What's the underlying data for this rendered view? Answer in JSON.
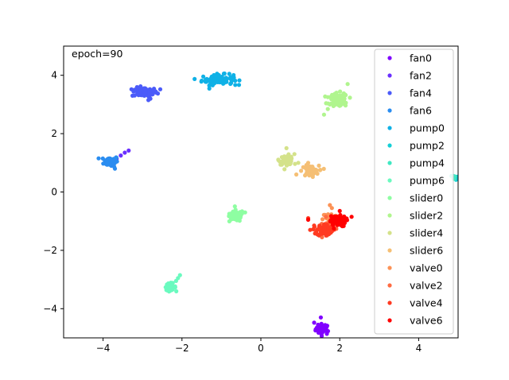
{
  "chart_data": {
    "type": "scatter",
    "annotation": "epoch=90",
    "xlim": [
      -5,
      5
    ],
    "ylim": [
      -5,
      5
    ],
    "xticks": [
      -4,
      -2,
      0,
      2,
      4
    ],
    "yticks": [
      -4,
      -2,
      0,
      2,
      4
    ],
    "grid": false,
    "legend_position": "upper right",
    "series": [
      {
        "name": "fan0",
        "color": "#8000ff",
        "center": [
          1.57,
          -4.7
        ],
        "spread": [
          0.09,
          0.09
        ],
        "n": 40,
        "outliers": [
          [
            1.52,
            -4.3
          ],
          [
            1.35,
            -4.48
          ],
          [
            1.45,
            -4.55
          ]
        ]
      },
      {
        "name": "fan2",
        "color": "#6a2fff",
        "center": [
          -3.72,
          1.05
        ],
        "spread": [
          0.04,
          0.06
        ],
        "n": 8,
        "outliers": [
          [
            -3.45,
            1.35
          ],
          [
            -3.35,
            1.42
          ],
          [
            -3.55,
            1.25
          ]
        ]
      },
      {
        "name": "fan4",
        "color": "#4b5bf9",
        "center": [
          -2.95,
          3.42
        ],
        "spread": [
          0.16,
          0.08
        ],
        "n": 70,
        "outliers": [
          [
            -2.55,
            3.52
          ],
          [
            -2.8,
            3.2
          ],
          [
            -2.85,
            3.15
          ],
          [
            -3.2,
            3.48
          ]
        ]
      },
      {
        "name": "fan6",
        "color": "#2a8df0",
        "center": [
          -3.8,
          1.05
        ],
        "spread": [
          0.09,
          0.09
        ],
        "n": 65,
        "outliers": [
          [
            -3.9,
            1.0
          ],
          [
            -3.7,
            0.8
          ],
          [
            -3.85,
            1.15
          ]
        ]
      },
      {
        "name": "pump0",
        "color": "#0fb1e6",
        "center": [
          -1.1,
          3.85
        ],
        "spread": [
          0.2,
          0.09
        ],
        "n": 80,
        "outliers": [
          [
            -1.4,
            3.85
          ],
          [
            -0.65,
            3.67
          ],
          [
            -1.3,
            3.8
          ],
          [
            -0.8,
            4.05
          ]
        ]
      },
      {
        "name": "pump2",
        "color": "#14cfd6",
        "center": [
          4.95,
          0.48
        ],
        "spread": [
          0.05,
          0.05
        ],
        "n": 14,
        "outliers": []
      },
      {
        "name": "pump4",
        "color": "#40e8c2",
        "center": [
          4.9,
          0.5
        ],
        "spread": [
          0.04,
          0.04
        ],
        "n": 6,
        "outliers": []
      },
      {
        "name": "pump6",
        "color": "#6afabf",
        "center": [
          -2.3,
          -3.25
        ],
        "spread": [
          0.07,
          0.06
        ],
        "n": 45,
        "outliers": [
          [
            -2.05,
            -2.85
          ],
          [
            -2.1,
            -2.95
          ],
          [
            -2.15,
            -3.05
          ]
        ]
      },
      {
        "name": "slider0",
        "color": "#8efea2",
        "center": [
          -0.62,
          -0.82
        ],
        "spread": [
          0.09,
          0.1
        ],
        "n": 70,
        "outliers": [
          [
            -0.4,
            -0.7
          ],
          [
            -0.8,
            -0.75
          ]
        ]
      },
      {
        "name": "slider2",
        "color": "#b0f58e",
        "center": [
          1.97,
          3.15
        ],
        "spread": [
          0.12,
          0.12
        ],
        "n": 80,
        "outliers": [
          [
            1.7,
            3.25
          ],
          [
            1.6,
            2.65
          ],
          [
            2.2,
            3.7
          ],
          [
            1.75,
            3.0
          ]
        ]
      },
      {
        "name": "slider4",
        "color": "#d4e28a",
        "center": [
          0.65,
          1.1
        ],
        "spread": [
          0.09,
          0.08
        ],
        "n": 55,
        "outliers": [
          [
            0.65,
            1.5
          ],
          [
            0.95,
            1.0
          ],
          [
            0.85,
            1.3
          ]
        ]
      },
      {
        "name": "slider6",
        "color": "#f5bf74",
        "center": [
          1.25,
          0.72
        ],
        "spread": [
          0.11,
          0.09
        ],
        "n": 60,
        "outliers": [
          [
            0.9,
            0.6
          ],
          [
            1.5,
            0.75
          ],
          [
            1.2,
            1.0
          ]
        ]
      },
      {
        "name": "valve0",
        "color": "#fc9256",
        "center": [
          1.75,
          -0.9
        ],
        "spread": [
          0.09,
          0.1
        ],
        "n": 35,
        "outliers": [
          [
            1.75,
            -0.45
          ],
          [
            1.8,
            -0.55
          ]
        ]
      },
      {
        "name": "valve2",
        "color": "#ff6b41",
        "center": [
          1.7,
          -1.2
        ],
        "spread": [
          0.1,
          0.1
        ],
        "n": 45,
        "outliers": [
          [
            1.55,
            -1.55
          ],
          [
            1.4,
            -1.4
          ],
          [
            1.65,
            -0.85
          ]
        ]
      },
      {
        "name": "valve4",
        "color": "#ff3a21",
        "center": [
          1.62,
          -1.3
        ],
        "spread": [
          0.1,
          0.1
        ],
        "n": 55,
        "outliers": [
          [
            1.25,
            -1.3
          ],
          [
            1.2,
            -0.9
          ],
          [
            1.35,
            -1.15
          ]
        ]
      },
      {
        "name": "valve6",
        "color": "#ff0000",
        "center": [
          1.95,
          -1.0
        ],
        "spread": [
          0.1,
          0.09
        ],
        "n": 90,
        "outliers": [
          [
            1.2,
            -0.95
          ],
          [
            2.3,
            -0.85
          ],
          [
            2.0,
            -0.65
          ],
          [
            1.85,
            -1.25
          ]
        ]
      }
    ]
  }
}
